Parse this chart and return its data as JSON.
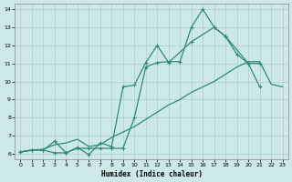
{
  "xlabel": "Humidex (Indice chaleur)",
  "bg_color": "#cce8e8",
  "grid_color": "#b0cccc",
  "line_color": "#2e8b74",
  "xlim": [
    -0.5,
    23.5
  ],
  "ylim": [
    5.7,
    14.3
  ],
  "xticks": [
    0,
    1,
    2,
    3,
    4,
    5,
    6,
    7,
    8,
    9,
    10,
    11,
    12,
    13,
    14,
    15,
    16,
    17,
    18,
    19,
    20,
    21,
    22,
    23
  ],
  "yticks": [
    6,
    7,
    8,
    9,
    10,
    11,
    12,
    13,
    14
  ],
  "line1_x": [
    0,
    1,
    2,
    3,
    4,
    5,
    6,
    7,
    8,
    9,
    10,
    11,
    12,
    13,
    14,
    15,
    16,
    17,
    18,
    19,
    20,
    21
  ],
  "line1_y": [
    6.1,
    6.2,
    6.2,
    6.05,
    6.05,
    6.3,
    6.3,
    6.3,
    6.3,
    6.3,
    8.0,
    10.8,
    11.05,
    11.1,
    11.1,
    13.0,
    14.0,
    13.0,
    12.5,
    11.5,
    11.0,
    9.7
  ],
  "line2_x": [
    0,
    1,
    2,
    3,
    4,
    5,
    6,
    7,
    8,
    9,
    10,
    11,
    12,
    13,
    15,
    17,
    18,
    20,
    21
  ],
  "line2_y": [
    6.1,
    6.2,
    6.2,
    6.7,
    6.05,
    6.35,
    5.95,
    6.6,
    6.4,
    9.7,
    9.8,
    11.05,
    12.0,
    11.05,
    12.2,
    13.0,
    12.5,
    11.0,
    11.0
  ],
  "line3_x": [
    0,
    1,
    2,
    3,
    4,
    5,
    6,
    7,
    8,
    9,
    10,
    11,
    12,
    13,
    14,
    15,
    16,
    17,
    18,
    19,
    20,
    21,
    22,
    23
  ],
  "line3_y": [
    6.1,
    6.2,
    6.25,
    6.5,
    6.6,
    6.8,
    6.4,
    6.5,
    6.9,
    7.2,
    7.5,
    7.9,
    8.3,
    8.7,
    9.0,
    9.4,
    9.7,
    10.0,
    10.4,
    10.8,
    11.1,
    11.1,
    9.85,
    9.7
  ]
}
